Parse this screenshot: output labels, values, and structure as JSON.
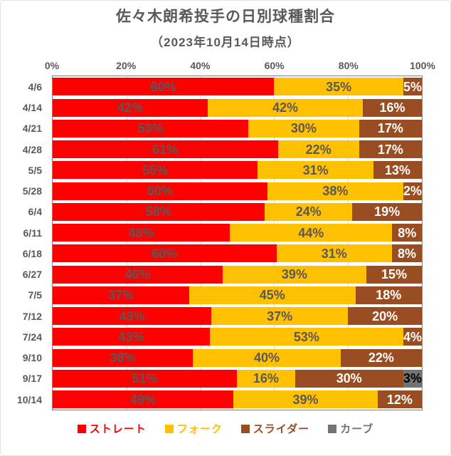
{
  "header": {
    "title": "佐々木朗希投手の日別球種割合",
    "subtitle": "（2023年10月14日時点）"
  },
  "chart_data": {
    "type": "bar",
    "variant": "horizontal-stacked-100pct",
    "title": "佐々木朗希投手の日別球種割合",
    "subtitle": "（2023年10月14日時点）",
    "x_axis": {
      "ticks": [
        "0%",
        "20%",
        "40%",
        "60%",
        "80%",
        "100%"
      ],
      "tick_values": [
        0,
        20,
        40,
        60,
        80,
        100
      ],
      "min": 0,
      "max": 100,
      "unit": "%"
    },
    "categories": [
      "4/6",
      "4/14",
      "4/21",
      "4/28",
      "5/5",
      "5/28",
      "6/4",
      "6/11",
      "6/18",
      "6/27",
      "7/5",
      "7/12",
      "7/24",
      "9/10",
      "9/17",
      "10/14"
    ],
    "series": [
      {
        "name": "ストレート",
        "color": "#ff0000",
        "label_color": "#595959",
        "values": [
          60,
          42,
          53,
          61,
          55,
          60,
          58,
          48,
          60,
          46,
          37,
          43,
          43,
          38,
          51,
          49
        ]
      },
      {
        "name": "フォーク",
        "color": "#ffc000",
        "label_color": "#595959",
        "values": [
          35,
          42,
          30,
          22,
          31,
          38,
          24,
          44,
          31,
          39,
          45,
          37,
          53,
          40,
          16,
          39
        ]
      },
      {
        "name": "スライダー",
        "color": "#9a4d20",
        "label_color": "#ffffff",
        "values": [
          5,
          16,
          17,
          17,
          13,
          2,
          19,
          8,
          8,
          15,
          18,
          20,
          4,
          22,
          30,
          12
        ]
      },
      {
        "name": "カーブ",
        "color": "#737373",
        "label_color": "#000000",
        "values": [
          0,
          0,
          0,
          0,
          0,
          0,
          0,
          0,
          0,
          0,
          0,
          0,
          0,
          0,
          3,
          0
        ]
      }
    ],
    "data_label_suffix": "%",
    "grid": true,
    "gridline_color": "#d9d9d9",
    "legend_position": "bottom",
    "plot_border_color": "#808080",
    "text_color": "#595959"
  }
}
